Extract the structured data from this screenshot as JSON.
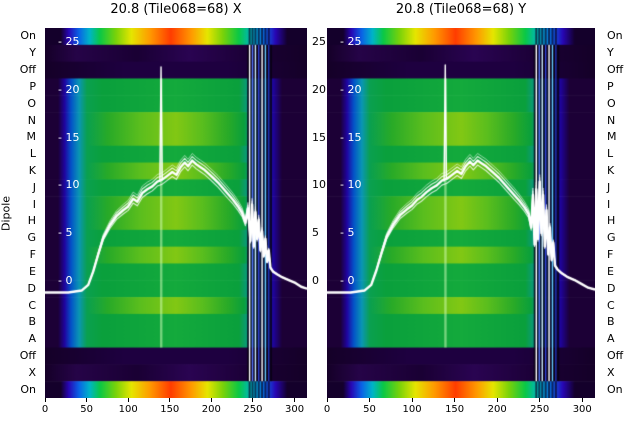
{
  "figure": {
    "dipole_axis_label": "Dipole",
    "dipole_labels": [
      "On",
      "Y",
      "Off",
      "P",
      "O",
      "N",
      "M",
      "L",
      "K",
      "J",
      "I",
      "H",
      "G",
      "F",
      "E",
      "D",
      "C",
      "B",
      "A",
      "Off",
      "X",
      "On"
    ],
    "row_bands": [
      "rainbow",
      "dark2",
      "dark",
      "green",
      "green",
      "greenY",
      "greenY",
      "green",
      "greenY",
      "green",
      "greenY",
      "greenY",
      "green",
      "greenY",
      "green",
      "green",
      "greenY",
      "green",
      "green",
      "dark",
      "dark2",
      "rainbow"
    ],
    "palettes": {
      "rainbow": [
        [
          0,
          "#14002b"
        ],
        [
          0.06,
          "#14002b"
        ],
        [
          0.09,
          "#2806b4"
        ],
        [
          0.13,
          "#0a64e6"
        ],
        [
          0.17,
          "#00b4c8"
        ],
        [
          0.21,
          "#0ac846"
        ],
        [
          0.27,
          "#78d20a"
        ],
        [
          0.33,
          "#e6e600"
        ],
        [
          0.4,
          "#ff9b00"
        ],
        [
          0.48,
          "#ff3c00"
        ],
        [
          0.56,
          "#ff9b00"
        ],
        [
          0.62,
          "#e6e600"
        ],
        [
          0.68,
          "#78d20a"
        ],
        [
          0.74,
          "#0ac846"
        ],
        [
          0.79,
          "#00b4c8"
        ],
        [
          0.84,
          "#0a64e6"
        ],
        [
          0.88,
          "#2806b4"
        ],
        [
          0.925,
          "#14002b"
        ],
        [
          1,
          "#14002b"
        ]
      ],
      "green": [
        [
          0,
          "#1c0036"
        ],
        [
          0.05,
          "#1c0036"
        ],
        [
          0.075,
          "#2004a0"
        ],
        [
          0.1,
          "#0453c8"
        ],
        [
          0.13,
          "#0a96b4"
        ],
        [
          0.16,
          "#0aa050"
        ],
        [
          0.22,
          "#0aa03c"
        ],
        [
          0.5,
          "#14aa3c"
        ],
        [
          0.74,
          "#0aa03c"
        ],
        [
          0.8,
          "#0a96b4"
        ],
        [
          0.84,
          "#0453c8"
        ],
        [
          0.87,
          "#2004a0"
        ],
        [
          0.905,
          "#1c0036"
        ],
        [
          1,
          "#1c0036"
        ]
      ],
      "greenY": [
        [
          0,
          "#1c0036"
        ],
        [
          0.05,
          "#1c0036"
        ],
        [
          0.075,
          "#2004a0"
        ],
        [
          0.1,
          "#0453c8"
        ],
        [
          0.13,
          "#0a96b4"
        ],
        [
          0.16,
          "#0aa050"
        ],
        [
          0.24,
          "#28aa28"
        ],
        [
          0.36,
          "#5abe1e"
        ],
        [
          0.5,
          "#82c814"
        ],
        [
          0.6,
          "#5abe1e"
        ],
        [
          0.7,
          "#28aa28"
        ],
        [
          0.76,
          "#0aa03c"
        ],
        [
          0.8,
          "#0a96b4"
        ],
        [
          0.84,
          "#0453c8"
        ],
        [
          0.87,
          "#2004a0"
        ],
        [
          0.905,
          "#1c0036"
        ],
        [
          1,
          "#1c0036"
        ]
      ],
      "dark": [
        [
          0,
          "#150028"
        ],
        [
          0.3,
          "#1e0040"
        ],
        [
          0.7,
          "#1e0040"
        ],
        [
          1,
          "#150028"
        ]
      ],
      "dark2": [
        [
          0,
          "#150028"
        ],
        [
          0.12,
          "#260448"
        ],
        [
          0.35,
          "#1a0034"
        ],
        [
          0.55,
          "#2a0452"
        ],
        [
          0.8,
          "#1a0034"
        ],
        [
          1,
          "#150028"
        ]
      ]
    },
    "colors": {
      "background": "#ffffff",
      "text": "#000000",
      "inner_tick_text": "#ffffff",
      "overlay_line": "#ffffff",
      "rfi_lines": [
        "#ffffff",
        "#5577ff",
        "#cceeff",
        "#3344dd",
        "#ffffff",
        "#66ccff",
        "#2233bb"
      ]
    }
  },
  "chart_data": [
    {
      "type": "heatmap",
      "title": "20.8 (Tile068=68) X",
      "x_range": [
        0,
        315
      ],
      "x_ticks": [
        0,
        50,
        100,
        150,
        200,
        250,
        300
      ],
      "y_categories": [
        "On",
        "Y",
        "Off",
        "P",
        "O",
        "N",
        "M",
        "L",
        "K",
        "J",
        "I",
        "H",
        "G",
        "F",
        "E",
        "D",
        "C",
        "B",
        "A",
        "Off",
        "X",
        "On"
      ],
      "y2_ticks": [
        25,
        20,
        15,
        10,
        5,
        0
      ],
      "y2_range": [
        0,
        25
      ],
      "rfi": {
        "x0": 243,
        "x1": 273,
        "bright_lines": [
          246,
          249.5,
          253,
          257,
          261,
          265,
          269
        ]
      },
      "cal_spike": {
        "x": 139.5,
        "height": 22.4
      },
      "overlay_line": {
        "name": "power-trace-db",
        "points": [
          [
            0,
            -1.2
          ],
          [
            28,
            -1.2
          ],
          [
            44,
            -1.0
          ],
          [
            52,
            -0.4
          ],
          [
            58,
            1.0
          ],
          [
            64,
            2.8
          ],
          [
            70,
            4.5
          ],
          [
            78,
            5.8
          ],
          [
            86,
            6.8
          ],
          [
            94,
            7.4
          ],
          [
            100,
            7.8
          ],
          [
            106,
            8.6
          ],
          [
            111,
            8.3
          ],
          [
            117,
            9.2
          ],
          [
            123,
            9.6
          ],
          [
            129,
            9.9
          ],
          [
            135,
            10.4
          ],
          [
            141,
            10.6
          ],
          [
            147,
            11.0
          ],
          [
            153,
            11.4
          ],
          [
            158,
            11.1
          ],
          [
            163,
            11.9
          ],
          [
            168,
            12.4
          ],
          [
            172,
            12.0
          ],
          [
            177,
            12.6
          ],
          [
            182,
            12.2
          ],
          [
            187,
            11.9
          ],
          [
            192,
            11.6
          ],
          [
            197,
            11.2
          ],
          [
            202,
            10.8
          ],
          [
            208,
            10.3
          ],
          [
            214,
            9.7
          ],
          [
            220,
            9.1
          ],
          [
            226,
            8.5
          ],
          [
            232,
            7.8
          ],
          [
            237,
            7.1
          ],
          [
            241,
            6.1
          ],
          [
            244,
            7.6
          ],
          [
            247,
            4.2
          ],
          [
            249,
            8.0
          ],
          [
            251,
            3.6
          ],
          [
            253,
            7.2
          ],
          [
            255,
            4.4
          ],
          [
            257,
            6.4
          ],
          [
            259,
            3.2
          ],
          [
            261,
            5.2
          ],
          [
            263,
            2.6
          ],
          [
            265,
            4.4
          ],
          [
            267,
            2.0
          ],
          [
            269,
            3.2
          ],
          [
            271,
            1.4
          ],
          [
            274,
            1.0
          ],
          [
            279,
            0.7
          ],
          [
            285,
            0.4
          ],
          [
            293,
            0.1
          ],
          [
            301,
            -0.2
          ],
          [
            308,
            -0.6
          ],
          [
            315,
            -0.8
          ]
        ]
      }
    },
    {
      "type": "heatmap",
      "title": "20.8 (Tile068=68) Y",
      "x_range": [
        0,
        315
      ],
      "x_ticks": [
        0,
        50,
        100,
        150,
        200,
        250,
        300
      ],
      "y_categories": [
        "On",
        "Y",
        "Off",
        "P",
        "O",
        "N",
        "M",
        "L",
        "K",
        "J",
        "I",
        "H",
        "G",
        "F",
        "E",
        "D",
        "C",
        "B",
        "A",
        "Off",
        "X",
        "On"
      ],
      "y2_ticks": [
        25,
        20,
        15,
        10,
        5,
        0
      ],
      "y2_range": [
        0,
        25
      ],
      "rfi": {
        "x0": 243,
        "x1": 273,
        "bright_lines": [
          246,
          249.5,
          253,
          257,
          261,
          265,
          269
        ]
      },
      "cal_spike": {
        "x": 139,
        "height": 22.6
      },
      "overlay_line": {
        "name": "power-trace-db",
        "points": [
          [
            0,
            -1.2
          ],
          [
            28,
            -1.2
          ],
          [
            44,
            -1.0
          ],
          [
            52,
            -0.4
          ],
          [
            58,
            1.1
          ],
          [
            64,
            2.9
          ],
          [
            70,
            4.6
          ],
          [
            78,
            5.9
          ],
          [
            86,
            6.9
          ],
          [
            94,
            7.5
          ],
          [
            100,
            7.9
          ],
          [
            106,
            8.5
          ],
          [
            111,
            8.8
          ],
          [
            117,
            9.3
          ],
          [
            123,
            9.7
          ],
          [
            129,
            10.0
          ],
          [
            135,
            10.5
          ],
          [
            141,
            10.7
          ],
          [
            147,
            11.1
          ],
          [
            153,
            11.5
          ],
          [
            158,
            11.2
          ],
          [
            163,
            12.0
          ],
          [
            168,
            12.5
          ],
          [
            172,
            12.1
          ],
          [
            177,
            12.6
          ],
          [
            182,
            12.3
          ],
          [
            187,
            12.0
          ],
          [
            192,
            11.6
          ],
          [
            197,
            11.2
          ],
          [
            202,
            10.8
          ],
          [
            208,
            10.2
          ],
          [
            214,
            9.6
          ],
          [
            220,
            9.0
          ],
          [
            226,
            8.4
          ],
          [
            232,
            7.7
          ],
          [
            237,
            7.0
          ],
          [
            240,
            5.6
          ],
          [
            242,
            9.0
          ],
          [
            244,
            3.8
          ],
          [
            246,
            9.6
          ],
          [
            248,
            4.4
          ],
          [
            250,
            10.4
          ],
          [
            252,
            5.0
          ],
          [
            254,
            9.0
          ],
          [
            256,
            3.6
          ],
          [
            258,
            7.4
          ],
          [
            260,
            2.8
          ],
          [
            262,
            5.6
          ],
          [
            264,
            2.2
          ],
          [
            266,
            4.0
          ],
          [
            268,
            1.6
          ],
          [
            271,
            1.2
          ],
          [
            276,
            0.8
          ],
          [
            283,
            0.4
          ],
          [
            291,
            0.1
          ],
          [
            299,
            -0.3
          ],
          [
            307,
            -0.7
          ],
          [
            315,
            -0.9
          ]
        ]
      }
    }
  ]
}
